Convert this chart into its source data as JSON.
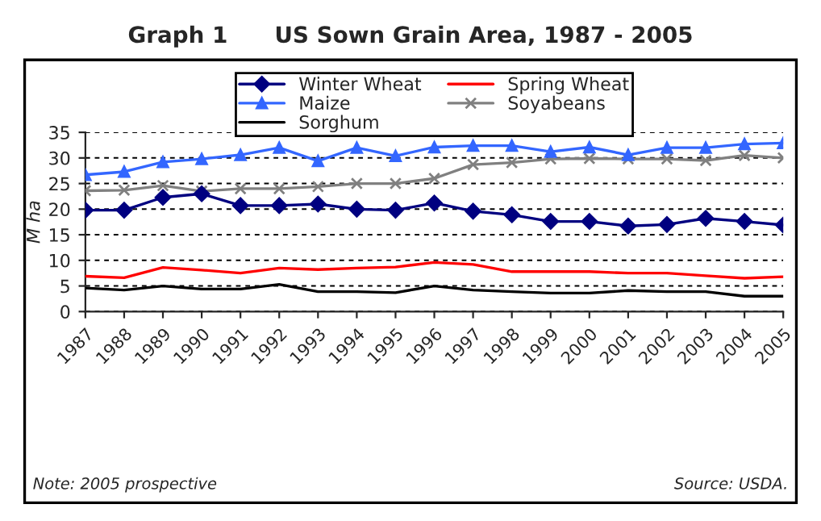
{
  "chart_data": {
    "type": "line",
    "title": "Graph 1      US Sown Grain Area, 1987 - 2005",
    "ylabel": "M ha",
    "categories": [
      "1987",
      "1988",
      "1989",
      "1990",
      "1991",
      "1992",
      "1993",
      "1994",
      "1995",
      "1996",
      "1997",
      "1998",
      "1999",
      "2000",
      "2001",
      "2002",
      "2003",
      "2004",
      "2005"
    ],
    "series": [
      {
        "name": "Winter Wheat",
        "color": "#000080",
        "marker": "diamond",
        "values": [
          19.8,
          19.8,
          22.3,
          23,
          20.7,
          20.7,
          21,
          20,
          19.8,
          21.2,
          19.6,
          18.9,
          17.6,
          17.6,
          16.7,
          17,
          18.2,
          17.6,
          16.9
        ]
      },
      {
        "name": "Spring Wheat",
        "color": "#ff0000",
        "marker": "none",
        "values": [
          6.9,
          6.6,
          8.6,
          8.1,
          7.5,
          8.5,
          8.2,
          8.5,
          8.7,
          9.6,
          9.2,
          7.8,
          7.8,
          7.8,
          7.5,
          7.5,
          7,
          6.5,
          6.8
        ]
      },
      {
        "name": "Maize",
        "color": "#3366ff",
        "marker": "triangle",
        "values": [
          26.7,
          27.3,
          29.2,
          29.8,
          30.6,
          32,
          29.4,
          32,
          30.4,
          32.1,
          32.4,
          32.4,
          31.2,
          32.1,
          30.6,
          32,
          32,
          32.7,
          32.9
        ]
      },
      {
        "name": "Soyabeans",
        "color": "#808080",
        "marker": "cross",
        "values": [
          23.6,
          23.7,
          24.6,
          23.5,
          24,
          24,
          24.4,
          25,
          25,
          26,
          28.7,
          29.1,
          29.8,
          29.9,
          29.8,
          29.8,
          29.5,
          30.5,
          30
        ]
      },
      {
        "name": "Sorghum",
        "color": "#000000",
        "marker": "none",
        "values": [
          4.6,
          4.2,
          5,
          4.4,
          4.4,
          5.3,
          3.9,
          3.9,
          3.7,
          5,
          4.2,
          3.9,
          3.6,
          3.6,
          4.1,
          3.9,
          3.9,
          3.0,
          3.0
        ]
      }
    ],
    "ylim": [
      0,
      35
    ],
    "yticks": [
      0,
      5,
      10,
      15,
      20,
      25,
      30,
      35
    ],
    "grid": "y",
    "legend": "top",
    "annotations": [
      "Note: 2005 prospective",
      "Source: USDA."
    ]
  }
}
